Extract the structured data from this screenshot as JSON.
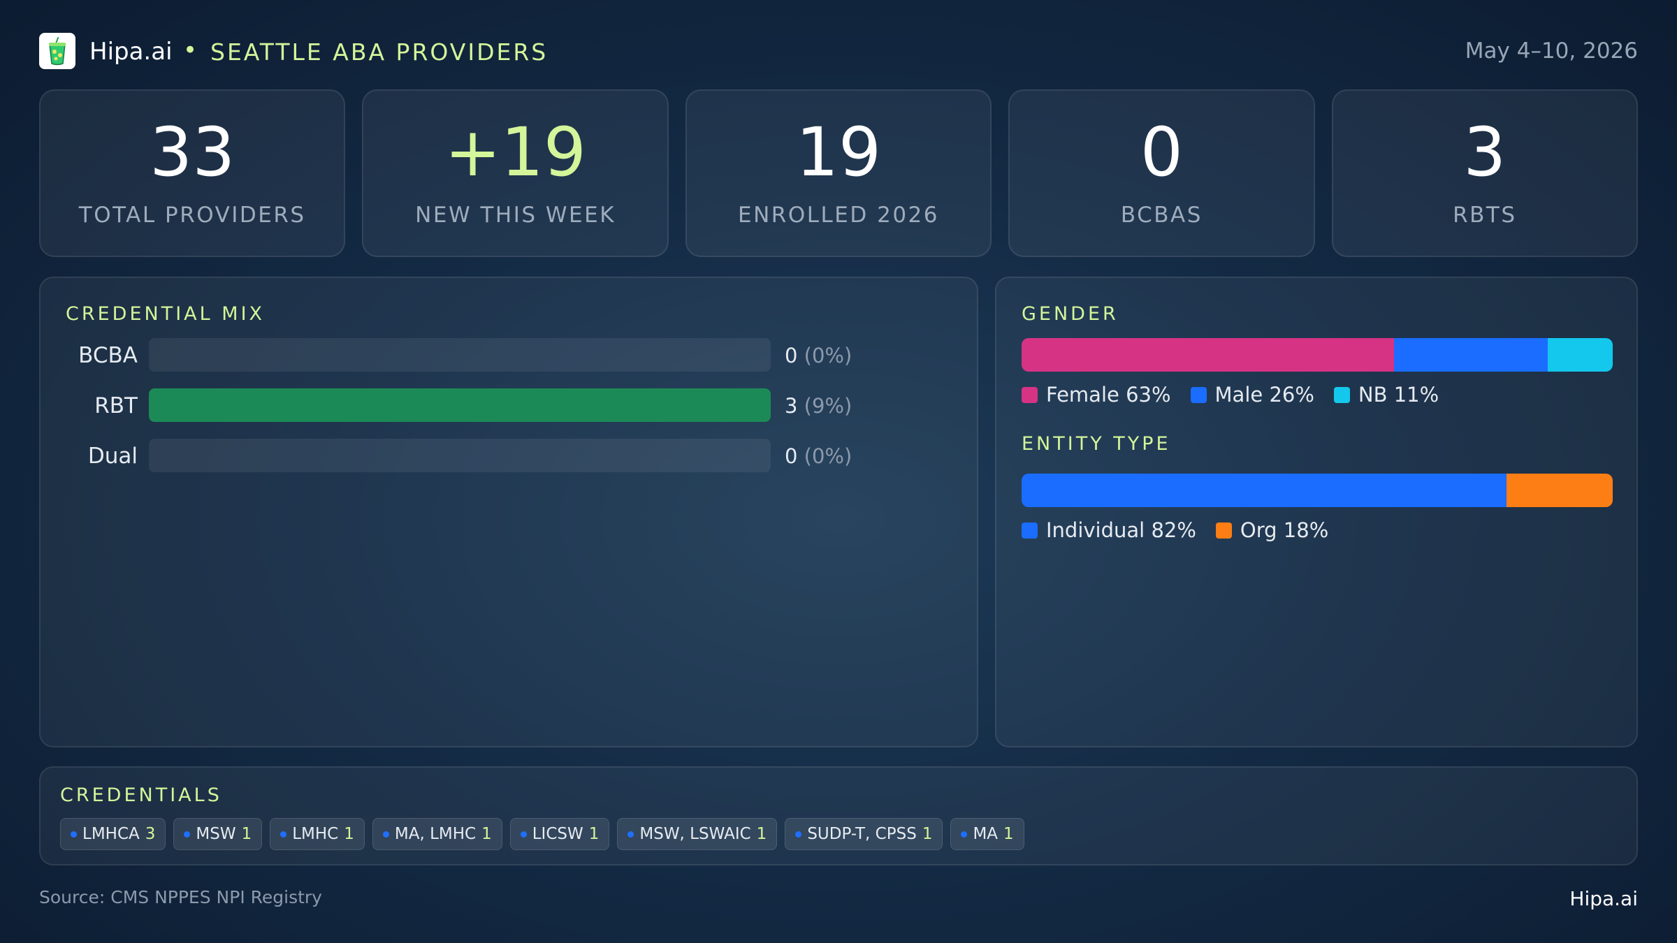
{
  "header": {
    "brand": "Hipa.ai",
    "separator": "•",
    "subtitle": "SEATTLE ABA PROVIDERS",
    "date_range": "May 4–10, 2026"
  },
  "kpis": [
    {
      "value": "33",
      "label": "TOTAL PROVIDERS",
      "accent": false
    },
    {
      "value": "+19",
      "label": "NEW THIS WEEK",
      "accent": true
    },
    {
      "value": "19",
      "label": "ENROLLED 2026",
      "accent": false
    },
    {
      "value": "0",
      "label": "BCBAS",
      "accent": false
    },
    {
      "value": "3",
      "label": "RBTS",
      "accent": false
    }
  ],
  "credential_mix": {
    "title": "CREDENTIAL MIX",
    "rows": [
      {
        "label": "BCBA",
        "value": "0",
        "pct": "(0%)",
        "fill": 0
      },
      {
        "label": "RBT",
        "value": "3",
        "pct": "(9%)",
        "fill": 1
      },
      {
        "label": "Dual",
        "value": "0",
        "pct": "(0%)",
        "fill": 0
      }
    ]
  },
  "gender": {
    "title": "GENDER",
    "segments": [
      {
        "label": "Female 63%",
        "share": 0.63,
        "color": "#d63384"
      },
      {
        "label": "Male 26%",
        "share": 0.26,
        "color": "#1a6dff"
      },
      {
        "label": "NB 11%",
        "share": 0.11,
        "color": "#13c8ec"
      }
    ]
  },
  "entity_type": {
    "title": "ENTITY TYPE",
    "segments": [
      {
        "label": "Individual 82%",
        "share": 0.82,
        "color": "#1a6dff"
      },
      {
        "label": "Org 18%",
        "share": 0.18,
        "color": "#fd7e14"
      }
    ]
  },
  "credentials": {
    "title": "CREDENTIALS",
    "chips": [
      {
        "name": "LMHCA",
        "count": "3"
      },
      {
        "name": "MSW",
        "count": "1"
      },
      {
        "name": "LMHC",
        "count": "1"
      },
      {
        "name": "MA, LMHC",
        "count": "1"
      },
      {
        "name": "LICSW",
        "count": "1"
      },
      {
        "name": "MSW, LSWAIC",
        "count": "1"
      },
      {
        "name": "SUDP-T, CPSS",
        "count": "1"
      },
      {
        "name": "MA",
        "count": "1"
      }
    ]
  },
  "footer": {
    "source": "Source: CMS NPPES NPI Registry",
    "brand": "Hipa.ai"
  },
  "icons": {
    "logo": "drink-cup-icon"
  }
}
